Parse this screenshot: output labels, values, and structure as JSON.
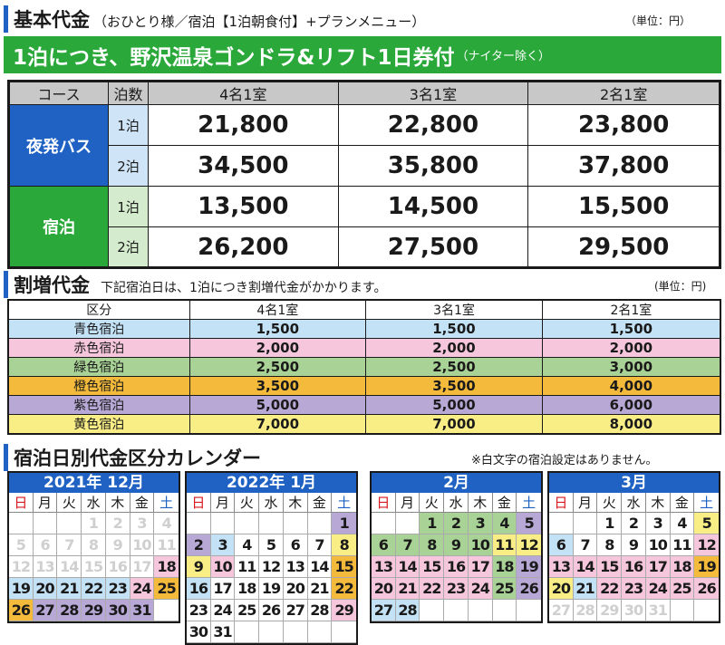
{
  "section1": {
    "title": "基本代金",
    "subtitle": "（おひとり様／宿泊【1泊朝食付】+プランメニュー）",
    "unit": "（単位：円）"
  },
  "banner": {
    "main": "1泊につき、野沢温泉ゴンドラ&リフト1日券付",
    "note": "（ナイター除く）"
  },
  "basic_table": {
    "headers": [
      "コース",
      "泊数",
      "4名1室",
      "3名1室",
      "2名1室"
    ],
    "groups": [
      {
        "name": "夜発バス",
        "rows": [
          {
            "nights": "1泊",
            "values": [
              "21,800",
              "22,800",
              "23,800"
            ]
          },
          {
            "nights": "2泊",
            "values": [
              "34,500",
              "35,800",
              "37,800"
            ]
          }
        ]
      },
      {
        "name": "宿泊",
        "rows": [
          {
            "nights": "1泊",
            "values": [
              "13,500",
              "14,500",
              "15,500"
            ]
          },
          {
            "nights": "2泊",
            "values": [
              "26,200",
              "27,500",
              "29,500"
            ]
          }
        ]
      }
    ]
  },
  "section2": {
    "title": "割増代金",
    "subtitle": "下記宿泊日は、1泊につき割増代金がかかります。",
    "unit": "(単位：円)"
  },
  "surcharge_table": {
    "headers": [
      "区分",
      "4名1室",
      "3名1室",
      "2名1室"
    ],
    "rows": [
      {
        "label": "青色宿泊",
        "values": [
          "1,500",
          "1,500",
          "1,500"
        ]
      },
      {
        "label": "赤色宿泊",
        "values": [
          "2,000",
          "2,000",
          "2,000"
        ]
      },
      {
        "label": "緑色宿泊",
        "values": [
          "2,500",
          "2,500",
          "3,000"
        ]
      },
      {
        "label": "橙色宿泊",
        "values": [
          "3,500",
          "3,500",
          "4,000"
        ]
      },
      {
        "label": "紫色宿泊",
        "values": [
          "5,000",
          "5,000",
          "6,000"
        ]
      },
      {
        "label": "黄色宿泊",
        "values": [
          "7,000",
          "7,000",
          "8,000"
        ]
      }
    ]
  },
  "section3": {
    "title": "宿泊日別代金区分カレンダー",
    "note": "※白文字の宿泊設定はありません。"
  },
  "colors": {
    "blue": "#c4e2f5",
    "pink": "#f6c7dc",
    "green": "#a9d396",
    "orange": "#f3ba3b",
    "purple": "#b7a8d6",
    "yellow": "#f9ee86",
    "header_blue": "#1f62c4",
    "banner_green": "#2aa83a"
  },
  "weekdays": [
    "日",
    "月",
    "火",
    "水",
    "木",
    "金",
    "土"
  ],
  "calendars": [
    {
      "title": "2021年 12月",
      "cells": [
        [
          "",
          ""
        ],
        [
          "",
          ""
        ],
        [
          "",
          ""
        ],
        [
          "1",
          "w"
        ],
        [
          "2",
          "w"
        ],
        [
          "3",
          "w"
        ],
        [
          "4",
          "w"
        ],
        [
          "5",
          "w"
        ],
        [
          "6",
          "w"
        ],
        [
          "7",
          "w"
        ],
        [
          "8",
          "w"
        ],
        [
          "9",
          "w"
        ],
        [
          "10",
          "w"
        ],
        [
          "11",
          "w"
        ],
        [
          "12",
          "w"
        ],
        [
          "13",
          "w"
        ],
        [
          "14",
          "w"
        ],
        [
          "15",
          "w"
        ],
        [
          "16",
          "w"
        ],
        [
          "17",
          "w"
        ],
        [
          "18",
          "p"
        ],
        [
          "19",
          "b"
        ],
        [
          "20",
          "b"
        ],
        [
          "21",
          "b"
        ],
        [
          "22",
          "b"
        ],
        [
          "23",
          "b"
        ],
        [
          "24",
          "p"
        ],
        [
          "25",
          "o"
        ],
        [
          "26",
          "o"
        ],
        [
          "27",
          "u"
        ],
        [
          "28",
          "u"
        ],
        [
          "29",
          "u"
        ],
        [
          "30",
          "u"
        ],
        [
          "31",
          "u"
        ],
        [
          "",
          ""
        ]
      ]
    },
    {
      "title": "2022年 1月",
      "cells": [
        [
          "",
          ""
        ],
        [
          "",
          ""
        ],
        [
          "",
          ""
        ],
        [
          "",
          ""
        ],
        [
          "",
          ""
        ],
        [
          "",
          ""
        ],
        [
          "1",
          "u"
        ],
        [
          "2",
          "u"
        ],
        [
          "3",
          "b"
        ],
        [
          "4",
          "e"
        ],
        [
          "5",
          "e"
        ],
        [
          "6",
          "e"
        ],
        [
          "7",
          "e"
        ],
        [
          "8",
          "y"
        ],
        [
          "9",
          "y"
        ],
        [
          "10",
          "p"
        ],
        [
          "11",
          "e"
        ],
        [
          "12",
          "e"
        ],
        [
          "13",
          "e"
        ],
        [
          "14",
          "e"
        ],
        [
          "15",
          "o"
        ],
        [
          "16",
          "b"
        ],
        [
          "17",
          "e"
        ],
        [
          "18",
          "e"
        ],
        [
          "19",
          "e"
        ],
        [
          "20",
          "e"
        ],
        [
          "21",
          "e"
        ],
        [
          "22",
          "o"
        ],
        [
          "23",
          "e"
        ],
        [
          "24",
          "e"
        ],
        [
          "25",
          "e"
        ],
        [
          "26",
          "e"
        ],
        [
          "27",
          "e"
        ],
        [
          "28",
          "e"
        ],
        [
          "29",
          "p"
        ],
        [
          "30",
          "e"
        ],
        [
          "31",
          "e"
        ],
        [
          "",
          ""
        ],
        [
          "",
          ""
        ],
        [
          "",
          ""
        ],
        [
          "",
          ""
        ],
        [
          "",
          ""
        ]
      ]
    },
    {
      "title": "2月",
      "cells": [
        [
          "",
          ""
        ],
        [
          "",
          ""
        ],
        [
          "1",
          "g"
        ],
        [
          "2",
          "g"
        ],
        [
          "3",
          "g"
        ],
        [
          "4",
          "g"
        ],
        [
          "5",
          "u"
        ],
        [
          "6",
          "g"
        ],
        [
          "7",
          "g"
        ],
        [
          "8",
          "g"
        ],
        [
          "9",
          "g"
        ],
        [
          "10",
          "g"
        ],
        [
          "11",
          "y"
        ],
        [
          "12",
          "y"
        ],
        [
          "13",
          "p"
        ],
        [
          "14",
          "p"
        ],
        [
          "15",
          "p"
        ],
        [
          "16",
          "p"
        ],
        [
          "17",
          "p"
        ],
        [
          "18",
          "g"
        ],
        [
          "19",
          "u"
        ],
        [
          "20",
          "p"
        ],
        [
          "21",
          "p"
        ],
        [
          "22",
          "p"
        ],
        [
          "23",
          "p"
        ],
        [
          "24",
          "p"
        ],
        [
          "25",
          "g"
        ],
        [
          "26",
          "u"
        ],
        [
          "27",
          "b"
        ],
        [
          "28",
          "b"
        ],
        [
          "",
          ""
        ],
        [
          "",
          ""
        ],
        [
          "",
          ""
        ],
        [
          "",
          ""
        ],
        [
          "",
          ""
        ]
      ]
    },
    {
      "title": "3月",
      "cells": [
        [
          "",
          ""
        ],
        [
          "",
          ""
        ],
        [
          "1",
          "e"
        ],
        [
          "2",
          "e"
        ],
        [
          "3",
          "e"
        ],
        [
          "4",
          "e"
        ],
        [
          "5",
          "y"
        ],
        [
          "6",
          "b"
        ],
        [
          "7",
          "e"
        ],
        [
          "8",
          "e"
        ],
        [
          "9",
          "e"
        ],
        [
          "10",
          "e"
        ],
        [
          "11",
          "e"
        ],
        [
          "12",
          "p"
        ],
        [
          "13",
          "p"
        ],
        [
          "14",
          "p"
        ],
        [
          "15",
          "p"
        ],
        [
          "16",
          "p"
        ],
        [
          "17",
          "p"
        ],
        [
          "18",
          "p"
        ],
        [
          "19",
          "o"
        ],
        [
          "20",
          "y"
        ],
        [
          "21",
          "b"
        ],
        [
          "22",
          "p"
        ],
        [
          "23",
          "p"
        ],
        [
          "24",
          "p"
        ],
        [
          "25",
          "p"
        ],
        [
          "26",
          "p"
        ],
        [
          "27",
          "w"
        ],
        [
          "28",
          "w"
        ],
        [
          "29",
          "w"
        ],
        [
          "30",
          "w"
        ],
        [
          "31",
          "w"
        ],
        [
          "",
          ""
        ],
        [
          "",
          ""
        ]
      ]
    }
  ]
}
